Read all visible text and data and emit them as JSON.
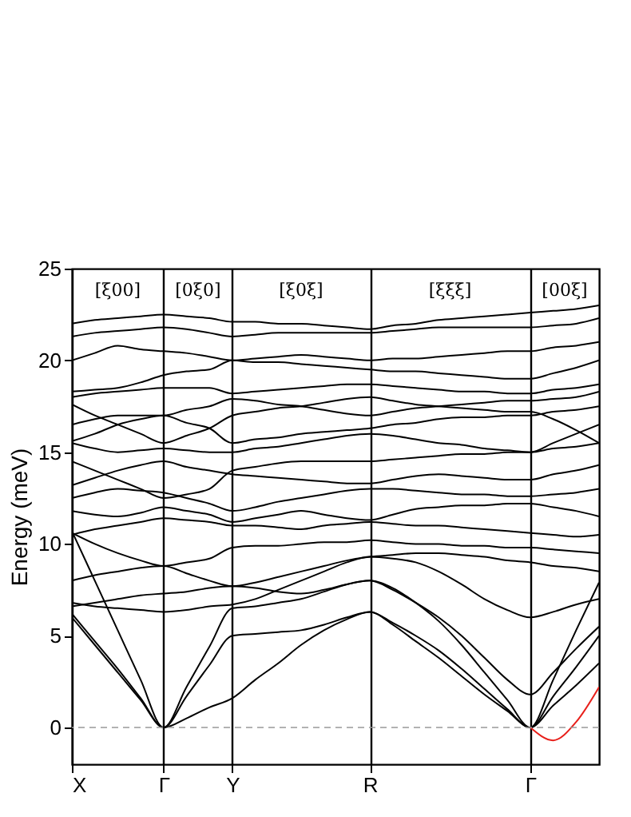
{
  "chart_data": {
    "type": "line",
    "ylabel": "Energy (meV)",
    "categories": [
      "X",
      null,
      null,
      null,
      "Γ",
      null,
      null,
      "Y",
      null,
      null,
      null,
      null,
      null,
      "R",
      null,
      null,
      null,
      null,
      null,
      null,
      "Γ",
      null,
      null,
      null
    ],
    "ylim": [
      -2,
      25
    ],
    "yticks": [
      0,
      5,
      10,
      15,
      20,
      25
    ],
    "grid": "x",
    "line_style": "solid",
    "series": [
      {
        "color": "#000000",
        "values": [
          6.0,
          4.5,
          3.0,
          1.5,
          0,
          0.5,
          1.1,
          1.6,
          2.6,
          3.5,
          4.5,
          5.3,
          5.9,
          6.3,
          5.6,
          4.7,
          3.8,
          2.8,
          1.8,
          0.9,
          0,
          1.2,
          2.3,
          3.5
        ]
      },
      {
        "color": "#000000",
        "values": [
          6.2,
          4.7,
          3.2,
          1.6,
          0,
          1.7,
          3.4,
          5.0,
          5.1,
          5.2,
          5.3,
          5.6,
          6.0,
          6.3,
          5.7,
          5.0,
          4.2,
          3.2,
          2.1,
          1.0,
          0,
          1.7,
          3.3,
          5.0
        ]
      },
      {
        "color": "#000000",
        "values": [
          10.7,
          8.0,
          5.3,
          2.6,
          0,
          2.2,
          4.4,
          6.5,
          6.6,
          6.8,
          7.0,
          7.4,
          7.8,
          8.0,
          7.6,
          6.8,
          5.8,
          4.5,
          3.0,
          1.5,
          0,
          2.6,
          5.3,
          7.9
        ]
      },
      {
        "color": "#000000",
        "values": [
          6.6,
          6.8,
          7.0,
          7.2,
          7.3,
          7.4,
          7.6,
          7.7,
          7.6,
          7.4,
          7.3,
          7.5,
          7.8,
          8.0,
          7.5,
          6.8,
          6.0,
          5.0,
          3.8,
          2.6,
          1.8,
          3.0,
          4.3,
          5.5
        ]
      },
      {
        "color": "#000000",
        "values": [
          6.8,
          6.6,
          6.5,
          6.4,
          6.3,
          6.4,
          6.6,
          6.7,
          7.0,
          7.5,
          8.0,
          8.5,
          9.0,
          9.3,
          9.2,
          9.0,
          8.5,
          7.8,
          7.0,
          6.4,
          6.0,
          6.3,
          6.7,
          7.0
        ]
      },
      {
        "color": "#000000",
        "values": [
          8.0,
          8.3,
          8.5,
          8.7,
          8.8,
          8.4,
          8.0,
          7.7,
          7.9,
          8.2,
          8.5,
          8.8,
          9.1,
          9.3,
          9.4,
          9.5,
          9.5,
          9.4,
          9.3,
          9.1,
          9.0,
          8.8,
          8.7,
          8.5
        ]
      },
      {
        "color": "#000000",
        "values": [
          10.6,
          10.0,
          9.5,
          9.1,
          8.8,
          9.0,
          9.2,
          9.8,
          9.9,
          9.9,
          10.0,
          10.1,
          10.1,
          10.2,
          10.1,
          10.0,
          10.0,
          9.9,
          9.9,
          9.8,
          9.8,
          9.7,
          9.6,
          9.5
        ]
      },
      {
        "color": "#000000",
        "values": [
          10.5,
          10.8,
          11.0,
          11.2,
          11.4,
          11.3,
          11.2,
          11.0,
          11.0,
          10.9,
          10.8,
          11.0,
          11.1,
          11.2,
          11.1,
          11.0,
          11.0,
          10.9,
          10.8,
          10.7,
          10.6,
          10.5,
          10.4,
          10.5
        ]
      },
      {
        "color": "#000000",
        "values": [
          11.8,
          11.6,
          11.5,
          11.7,
          12.0,
          11.8,
          11.6,
          11.2,
          11.4,
          11.6,
          11.8,
          11.6,
          11.4,
          11.3,
          11.6,
          11.9,
          12.0,
          12.1,
          12.1,
          12.2,
          12.2,
          12.0,
          11.8,
          11.5
        ]
      },
      {
        "color": "#000000",
        "values": [
          12.5,
          12.8,
          13.0,
          12.9,
          12.8,
          12.5,
          12.2,
          11.8,
          12.0,
          12.3,
          12.5,
          12.7,
          12.9,
          13.0,
          13.0,
          12.9,
          12.8,
          12.7,
          12.7,
          12.6,
          12.6,
          12.7,
          12.8,
          13.0
        ]
      },
      {
        "color": "#000000",
        "values": [
          13.2,
          13.6,
          14.0,
          14.3,
          14.5,
          14.2,
          14.0,
          13.8,
          13.7,
          13.6,
          13.5,
          13.4,
          13.3,
          13.3,
          13.5,
          13.7,
          13.8,
          13.7,
          13.6,
          13.5,
          13.5,
          13.8,
          14.0,
          14.3
        ]
      },
      {
        "color": "#000000",
        "values": [
          14.5,
          14.0,
          13.5,
          13.0,
          12.5,
          12.7,
          13.0,
          14.0,
          14.2,
          14.4,
          14.5,
          14.5,
          14.5,
          14.5,
          14.6,
          14.7,
          14.8,
          14.9,
          14.9,
          15.0,
          15.0,
          15.2,
          15.3,
          15.5
        ]
      },
      {
        "color": "#000000",
        "values": [
          15.5,
          15.2,
          15.0,
          15.1,
          15.2,
          15.1,
          15.0,
          15.0,
          15.2,
          15.3,
          15.5,
          15.7,
          15.9,
          16.0,
          15.9,
          15.7,
          15.5,
          15.4,
          15.2,
          15.1,
          15.0,
          15.5,
          16.0,
          16.5
        ]
      },
      {
        "color": "#000000",
        "values": [
          15.6,
          16.0,
          16.5,
          16.8,
          17.0,
          16.6,
          16.3,
          15.5,
          15.7,
          15.8,
          16.0,
          16.1,
          16.2,
          16.3,
          16.5,
          16.6,
          16.8,
          16.9,
          16.9,
          17.0,
          17.0,
          17.2,
          17.3,
          17.5
        ]
      },
      {
        "color": "#000000",
        "values": [
          16.5,
          16.8,
          17.0,
          17.0,
          17.0,
          17.3,
          17.5,
          17.9,
          17.8,
          17.6,
          17.5,
          17.3,
          17.1,
          17.0,
          17.2,
          17.4,
          17.5,
          17.6,
          17.7,
          17.8,
          17.8,
          17.9,
          18.0,
          18.3
        ]
      },
      {
        "color": "#000000",
        "values": [
          17.6,
          17.0,
          16.5,
          16.0,
          15.5,
          15.9,
          16.3,
          17.0,
          17.2,
          17.4,
          17.5,
          17.7,
          17.9,
          18.0,
          17.8,
          17.6,
          17.5,
          17.4,
          17.3,
          17.2,
          17.2,
          16.8,
          16.2,
          15.5
        ]
      },
      {
        "color": "#000000",
        "values": [
          18.0,
          18.2,
          18.3,
          18.4,
          18.5,
          18.5,
          18.5,
          18.2,
          18.3,
          18.4,
          18.5,
          18.6,
          18.7,
          18.7,
          18.6,
          18.5,
          18.4,
          18.3,
          18.3,
          18.2,
          18.2,
          18.4,
          18.5,
          18.7
        ]
      },
      {
        "color": "#000000",
        "values": [
          18.3,
          18.4,
          18.5,
          18.8,
          19.2,
          19.4,
          19.5,
          20.0,
          19.9,
          19.9,
          19.8,
          19.7,
          19.6,
          19.5,
          19.4,
          19.4,
          19.3,
          19.2,
          19.1,
          19.0,
          19.0,
          19.3,
          19.6,
          20.0
        ]
      },
      {
        "color": "#000000",
        "values": [
          20.0,
          20.4,
          20.8,
          20.6,
          20.5,
          20.4,
          20.2,
          20.0,
          20.1,
          20.2,
          20.3,
          20.2,
          20.1,
          20.0,
          20.1,
          20.1,
          20.2,
          20.3,
          20.4,
          20.5,
          20.5,
          20.7,
          20.8,
          21.0
        ]
      },
      {
        "color": "#000000",
        "values": [
          21.3,
          21.5,
          21.6,
          21.7,
          21.8,
          21.7,
          21.5,
          21.3,
          21.4,
          21.5,
          21.5,
          21.5,
          21.5,
          21.5,
          21.6,
          21.7,
          21.8,
          21.8,
          21.8,
          21.8,
          21.8,
          21.9,
          22.0,
          22.3
        ]
      },
      {
        "color": "#000000",
        "values": [
          22.0,
          22.2,
          22.3,
          22.4,
          22.5,
          22.4,
          22.3,
          22.1,
          22.1,
          22.0,
          22.0,
          21.9,
          21.8,
          21.7,
          21.9,
          22.0,
          22.2,
          22.3,
          22.4,
          22.5,
          22.6,
          22.7,
          22.8,
          23.0
        ]
      },
      {
        "color": "#e8201b",
        "values": [
          null,
          null,
          null,
          null,
          null,
          null,
          null,
          null,
          null,
          null,
          null,
          null,
          null,
          null,
          null,
          null,
          null,
          null,
          null,
          null,
          0,
          -0.7,
          0.3,
          2.2
        ]
      }
    ],
    "ref_lines": [
      {
        "axis": "y",
        "value": 0,
        "color": "#999999",
        "line_style": "dashed"
      }
    ],
    "annotations": [
      "[ξ00]",
      "[0ξ0]",
      "[ξ0ξ]",
      "[ξξξ]",
      "[00ξ]"
    ]
  }
}
